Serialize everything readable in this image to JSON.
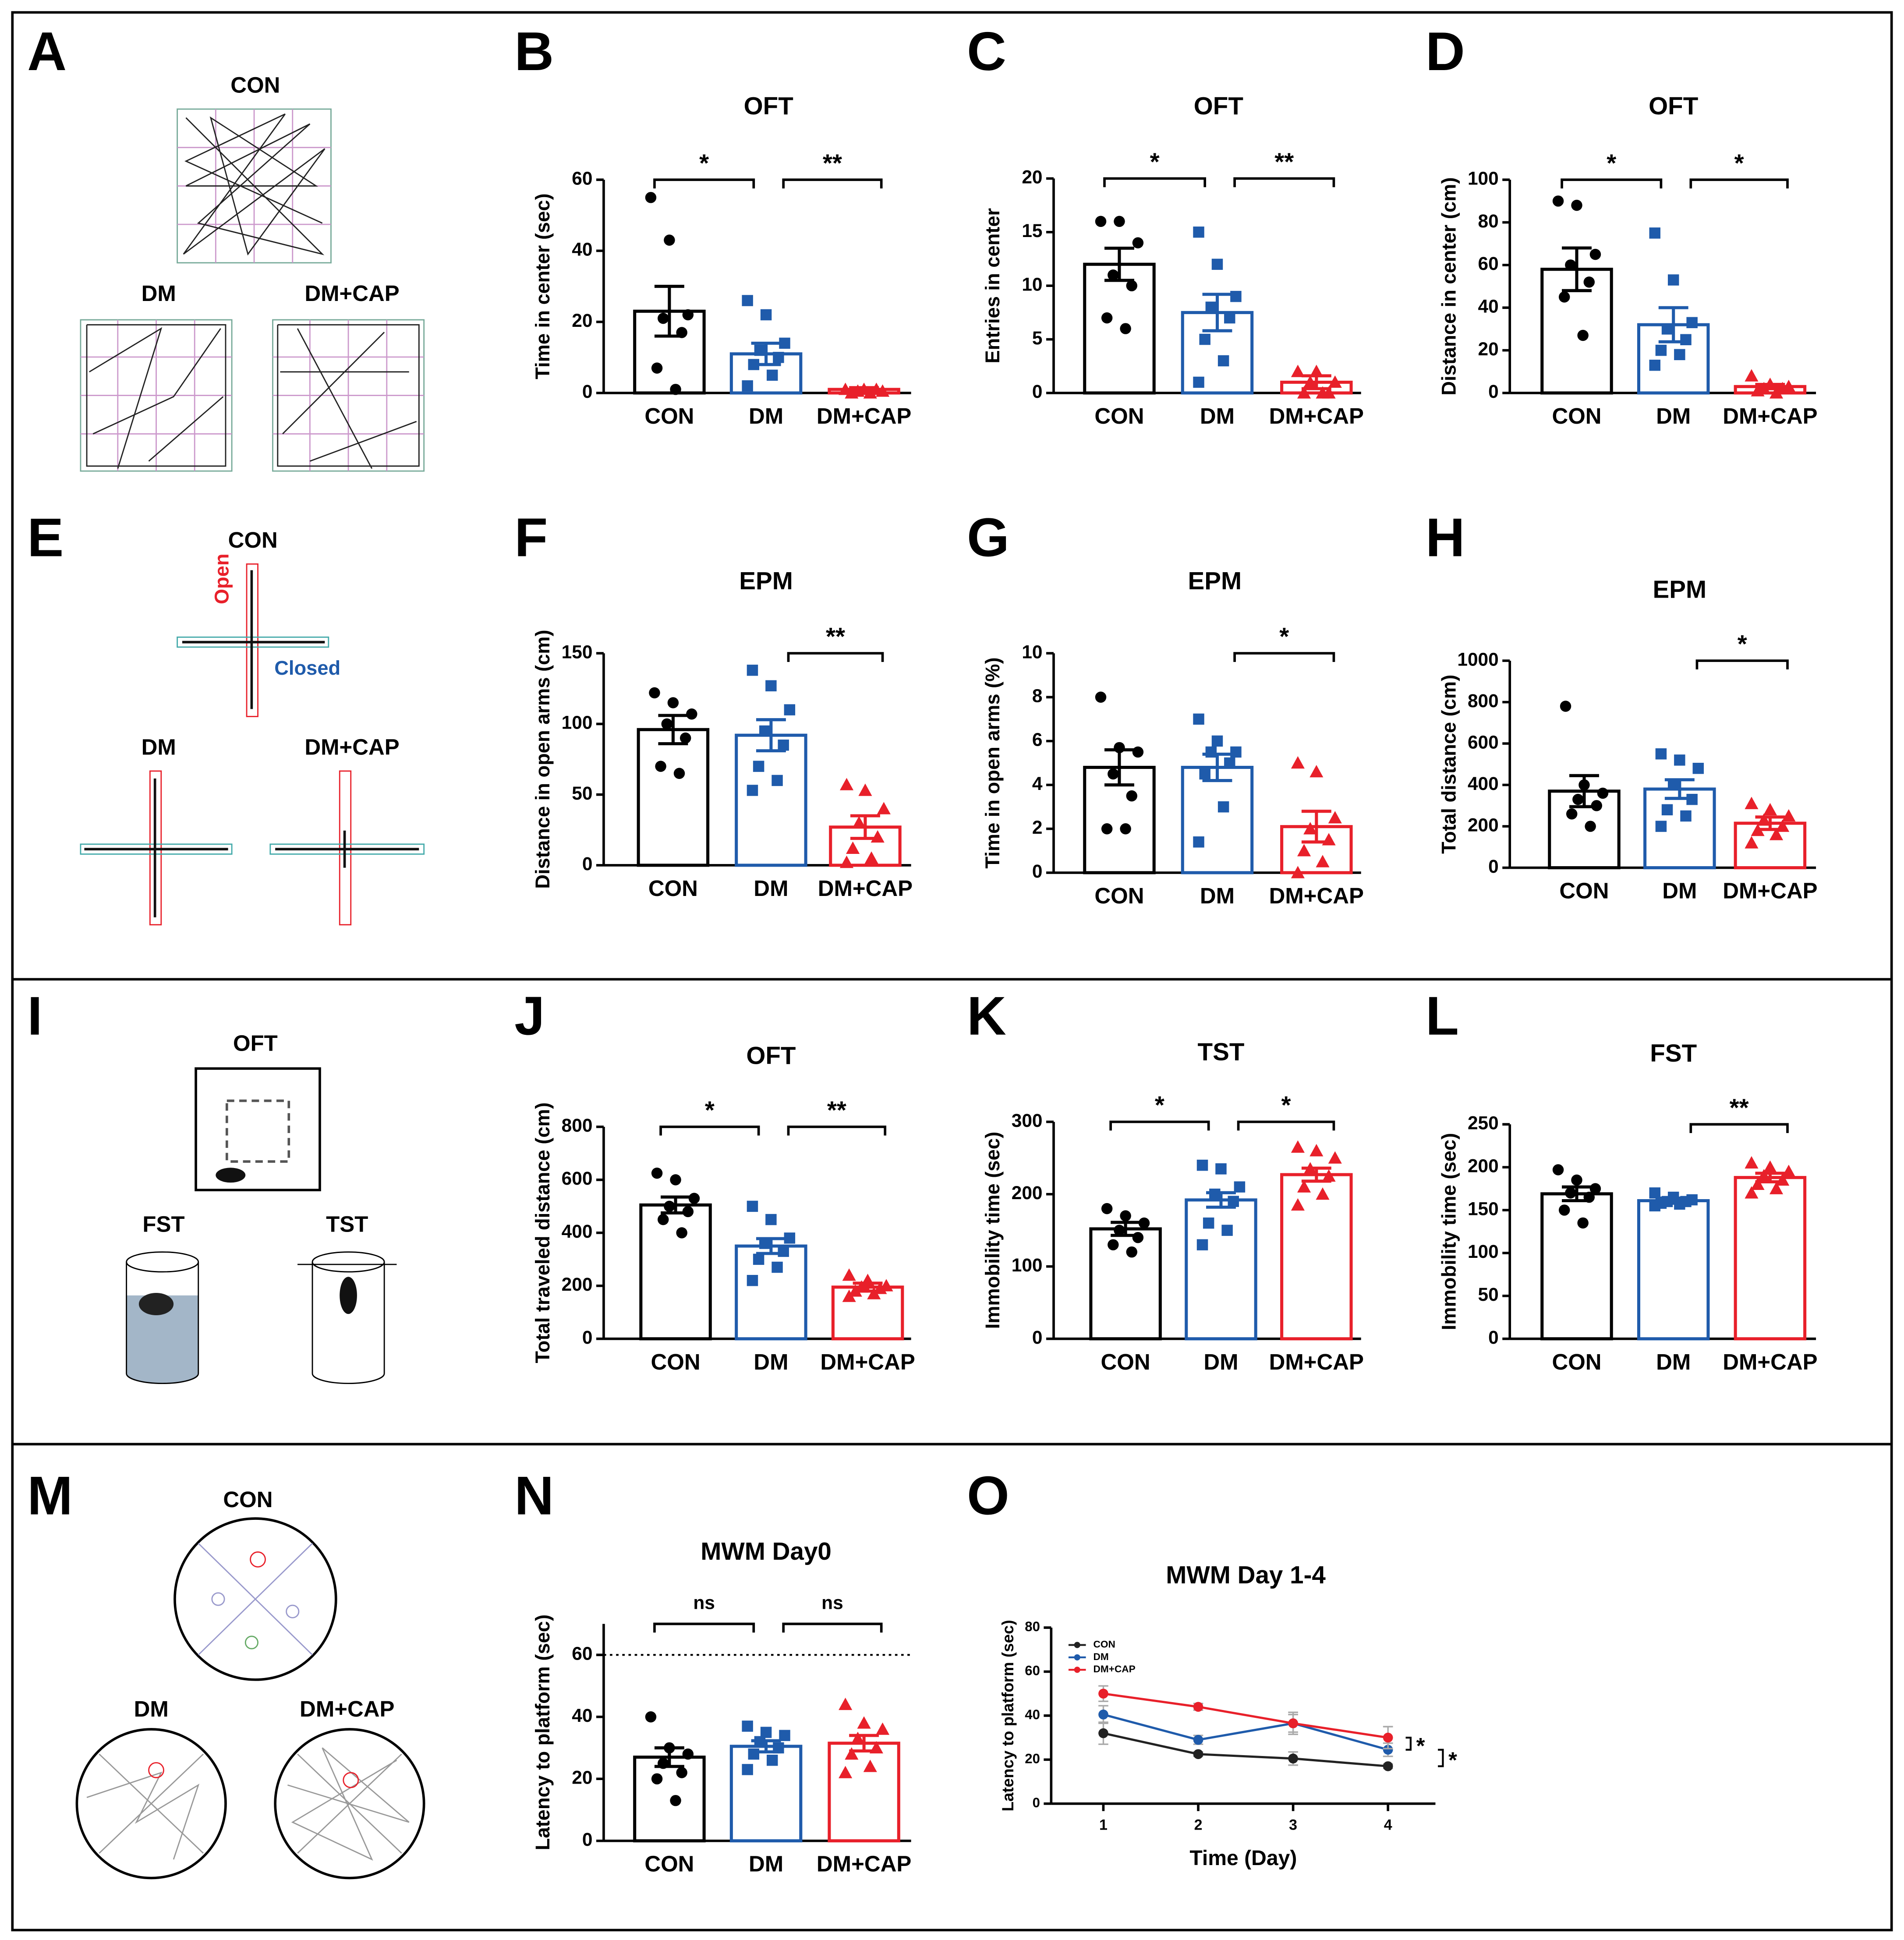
{
  "chart_data": [
    {
      "type": "bar",
      "panel": "B",
      "title": "OFT",
      "ylabel": "Time in center (sec)",
      "categories": [
        "CON",
        "DM",
        "DM+CAP"
      ],
      "colors": [
        "#000000",
        "#1f5bab",
        "#e8202a"
      ],
      "markers": [
        "circle",
        "square",
        "triangle"
      ],
      "values": [
        23,
        11,
        1
      ],
      "errors": [
        7,
        3,
        0.5
      ],
      "points": [
        [
          55,
          43,
          22,
          21,
          17,
          7,
          1
        ],
        [
          26,
          22,
          14,
          12,
          10,
          8,
          5,
          2
        ],
        [
          1,
          1,
          0.5,
          0.5,
          1,
          0,
          0
        ]
      ],
      "ylim": [
        0,
        60
      ],
      "yticks": [
        0,
        20,
        40,
        60
      ],
      "annotations": [
        {
          "label": "*",
          "between": [
            "CON",
            "DM"
          ]
        },
        {
          "label": "**",
          "between": [
            "DM",
            "DM+CAP"
          ]
        }
      ]
    },
    {
      "type": "bar",
      "panel": "C",
      "title": "OFT",
      "ylabel": "Entries in center",
      "categories": [
        "CON",
        "DM",
        "DM+CAP"
      ],
      "colors": [
        "#000000",
        "#1f5bab",
        "#e8202a"
      ],
      "markers": [
        "circle",
        "square",
        "triangle"
      ],
      "values": [
        12,
        7.5,
        1
      ],
      "errors": [
        1.5,
        1.7,
        0.6
      ],
      "points": [
        [
          16,
          16,
          14,
          11,
          10,
          7,
          6
        ],
        [
          15,
          12,
          9,
          8,
          7,
          5,
          3,
          1
        ],
        [
          2,
          2,
          1,
          1,
          0,
          0,
          0
        ]
      ],
      "ylim": [
        0,
        20
      ],
      "yticks": [
        0,
        5,
        10,
        15,
        20
      ],
      "annotations": [
        {
          "label": "*",
          "between": [
            "CON",
            "DM"
          ]
        },
        {
          "label": "**",
          "between": [
            "DM",
            "DM+CAP"
          ]
        }
      ]
    },
    {
      "type": "bar",
      "panel": "D",
      "title": "OFT",
      "ylabel": "Distance in center (cm)",
      "categories": [
        "CON",
        "DM",
        "DM+CAP"
      ],
      "colors": [
        "#000000",
        "#1f5bab",
        "#e8202a"
      ],
      "markers": [
        "circle",
        "square",
        "triangle"
      ],
      "values": [
        58,
        32,
        3
      ],
      "errors": [
        10,
        8,
        1
      ],
      "points": [
        [
          90,
          88,
          65,
          60,
          52,
          45,
          27
        ],
        [
          75,
          53,
          33,
          30,
          25,
          20,
          18,
          13
        ],
        [
          8,
          4,
          3,
          2,
          2,
          1,
          0
        ]
      ],
      "ylim": [
        0,
        100
      ],
      "yticks": [
        0,
        20,
        40,
        60,
        80,
        100
      ],
      "annotations": [
        {
          "label": "*",
          "between": [
            "CON",
            "DM"
          ]
        },
        {
          "label": "*",
          "between": [
            "DM",
            "DM+CAP"
          ]
        }
      ]
    },
    {
      "type": "bar",
      "panel": "F",
      "title": "EPM",
      "ylabel": "Distance in open arms (cm)",
      "categories": [
        "CON",
        "DM",
        "DM+CAP"
      ],
      "colors": [
        "#000000",
        "#1f5bab",
        "#e8202a"
      ],
      "markers": [
        "circle",
        "square",
        "triangle"
      ],
      "values": [
        96,
        92,
        27
      ],
      "errors": [
        10,
        11,
        8
      ],
      "points": [
        [
          122,
          115,
          107,
          100,
          90,
          70,
          65
        ],
        [
          138,
          127,
          110,
          95,
          85,
          70,
          60,
          53
        ],
        [
          57,
          53,
          40,
          30,
          20,
          12,
          5,
          2
        ]
      ],
      "ylim": [
        0,
        150
      ],
      "yticks": [
        0,
        50,
        100,
        150
      ],
      "annotations": [
        {
          "label": "**",
          "between": [
            "DM",
            "DM+CAP"
          ]
        }
      ]
    },
    {
      "type": "bar",
      "panel": "G",
      "title": "EPM",
      "ylabel": "Time in open arms (%)",
      "categories": [
        "CON",
        "DM",
        "DM+CAP"
      ],
      "colors": [
        "#000000",
        "#1f5bab",
        "#e8202a"
      ],
      "markers": [
        "circle",
        "square",
        "triangle"
      ],
      "values": [
        4.8,
        4.8,
        2.1
      ],
      "errors": [
        0.8,
        0.6,
        0.7
      ],
      "points": [
        [
          8,
          5.7,
          5.5,
          4.5,
          3.5,
          2,
          2
        ],
        [
          7,
          6,
          5.5,
          5.5,
          5,
          4.5,
          3,
          1.4
        ],
        [
          5,
          4.6,
          2.5,
          2,
          1.5,
          1,
          0.5,
          0
        ]
      ],
      "ylim": [
        0,
        10
      ],
      "yticks": [
        0,
        2,
        4,
        6,
        8,
        10
      ],
      "annotations": [
        {
          "label": "*",
          "between": [
            "DM",
            "DM+CAP"
          ]
        }
      ]
    },
    {
      "type": "bar",
      "panel": "H",
      "title": "EPM",
      "ylabel": "Total distance (cm)",
      "categories": [
        "CON",
        "DM",
        "DM+CAP"
      ],
      "colors": [
        "#000000",
        "#1f5bab",
        "#e8202a"
      ],
      "markers": [
        "circle",
        "square",
        "triangle"
      ],
      "values": [
        370,
        380,
        215
      ],
      "errors": [
        75,
        45,
        30
      ],
      "points": [
        [
          780,
          400,
          360,
          330,
          300,
          260,
          200
        ],
        [
          550,
          520,
          480,
          400,
          330,
          280,
          250,
          200
        ],
        [
          310,
          280,
          250,
          230,
          200,
          180,
          160,
          120
        ]
      ],
      "ylim": [
        0,
        1000
      ],
      "yticks": [
        0,
        200,
        400,
        600,
        800,
        1000
      ],
      "annotations": [
        {
          "label": "*",
          "between": [
            "DM",
            "DM+CAP"
          ]
        }
      ]
    },
    {
      "type": "bar",
      "panel": "J",
      "title": "OFT",
      "ylabel": "Total traveled distance (cm)",
      "categories": [
        "CON",
        "DM",
        "DM+CAP"
      ],
      "colors": [
        "#000000",
        "#1f5bab",
        "#e8202a"
      ],
      "markers": [
        "circle",
        "square",
        "triangle"
      ],
      "values": [
        505,
        350,
        195
      ],
      "errors": [
        30,
        28,
        15
      ],
      "points": [
        [
          625,
          600,
          530,
          500,
          480,
          450,
          400
        ],
        [
          500,
          450,
          380,
          360,
          330,
          300,
          270,
          220
        ],
        [
          240,
          220,
          200,
          195,
          190,
          180,
          170,
          160
        ]
      ],
      "ylim": [
        0,
        800
      ],
      "yticks": [
        0,
        200,
        400,
        600,
        800
      ],
      "annotations": [
        {
          "label": "*",
          "between": [
            "CON",
            "DM"
          ]
        },
        {
          "label": "**",
          "between": [
            "DM",
            "DM+CAP"
          ]
        }
      ]
    },
    {
      "type": "bar",
      "panel": "K",
      "title": "TST",
      "ylabel": "Immobility time (sec)",
      "categories": [
        "CON",
        "DM",
        "DM+CAP"
      ],
      "colors": [
        "#000000",
        "#1f5bab",
        "#e8202a"
      ],
      "markers": [
        "circle",
        "square",
        "triangle"
      ],
      "values": [
        152,
        192,
        227
      ],
      "errors": [
        9,
        10,
        9
      ],
      "points": [
        [
          180,
          170,
          160,
          150,
          140,
          130,
          120
        ],
        [
          240,
          235,
          210,
          200,
          190,
          160,
          150,
          130
        ],
        [
          265,
          260,
          250,
          235,
          225,
          210,
          200,
          185
        ]
      ],
      "ylim": [
        0,
        300
      ],
      "yticks": [
        0,
        100,
        200,
        300
      ],
      "annotations": [
        {
          "label": "*",
          "between": [
            "CON",
            "DM"
          ]
        },
        {
          "label": "*",
          "between": [
            "DM",
            "DM+CAP"
          ]
        }
      ]
    },
    {
      "type": "bar",
      "panel": "L",
      "title": "FST",
      "ylabel": "Immobility time (sec)",
      "categories": [
        "CON",
        "DM",
        "DM+CAP"
      ],
      "colors": [
        "#000000",
        "#1f5bab",
        "#e8202a"
      ],
      "markers": [
        "circle",
        "square",
        "triangle"
      ],
      "values": [
        169,
        161,
        188
      ],
      "errors": [
        8,
        3,
        5
      ],
      "points": [
        [
          197,
          185,
          175,
          170,
          165,
          150,
          135
        ],
        [
          170,
          165,
          162,
          160,
          160,
          158,
          157,
          155
        ],
        [
          205,
          200,
          195,
          190,
          185,
          180,
          175,
          170
        ]
      ],
      "ylim": [
        0,
        250
      ],
      "yticks": [
        0,
        50,
        100,
        150,
        200,
        250
      ],
      "annotations": [
        {
          "label": "**",
          "between": [
            "DM",
            "DM+CAP"
          ]
        }
      ]
    },
    {
      "type": "bar",
      "panel": "N",
      "title": "MWM Day0",
      "ylabel": "Latency to platform (sec)",
      "categories": [
        "CON",
        "DM",
        "DM+CAP"
      ],
      "colors": [
        "#000000",
        "#1f5bab",
        "#e8202a"
      ],
      "markers": [
        "circle",
        "square",
        "triangle"
      ],
      "values": [
        27,
        30.5,
        31.5
      ],
      "errors": [
        3,
        1.8,
        2.5
      ],
      "points": [
        [
          40,
          30,
          28,
          25,
          22,
          20,
          13
        ],
        [
          37,
          35,
          34,
          32,
          30,
          28,
          26,
          23
        ],
        [
          44,
          38,
          36,
          33,
          30,
          28,
          24,
          22
        ]
      ],
      "ylim": [
        0,
        70
      ],
      "yticks": [
        0,
        20,
        40,
        60
      ],
      "hline": 60,
      "annotations": [
        {
          "label": "ns",
          "between": [
            "CON",
            "DM"
          ]
        },
        {
          "label": "ns",
          "between": [
            "DM",
            "DM+CAP"
          ]
        }
      ]
    },
    {
      "type": "line",
      "panel": "O",
      "title": "MWM Day 1-4",
      "xlabel": "Time (Day)",
      "ylabel": "Latency to platform (sec)",
      "x": [
        1,
        2,
        3,
        4
      ],
      "xlim": [
        0.45,
        4.5
      ],
      "xticks": [
        1,
        2,
        3,
        4
      ],
      "ylim": [
        0,
        80
      ],
      "yticks": [
        0,
        20,
        40,
        60,
        80
      ],
      "legend": "upper left",
      "series": [
        {
          "name": "CON",
          "color": "#222222",
          "values": [
            32,
            22.5,
            20.5,
            17
          ],
          "errors": [
            5,
            1,
            3,
            1
          ]
        },
        {
          "name": "DM",
          "color": "#1f5bab",
          "values": [
            40.5,
            29,
            36.5,
            24.5
          ],
          "errors": [
            4,
            2,
            5,
            3
          ]
        },
        {
          "name": "DM+CAP",
          "color": "#e8202a",
          "values": [
            50,
            44,
            36.5,
            30
          ],
          "errors": [
            3.5,
            1.5,
            4,
            5
          ]
        }
      ],
      "annotations": [
        {
          "label": "*",
          "between": [
            "DM+CAP",
            "DM"
          ]
        },
        {
          "label": "*",
          "between": [
            "DM",
            "CON"
          ]
        }
      ]
    }
  ],
  "illustrations": [
    {
      "panel": "A",
      "labels": [
        "CON",
        "DM",
        "DM+CAP"
      ]
    },
    {
      "panel": "E",
      "labels": [
        "CON",
        "DM",
        "DM+CAP"
      ],
      "open": "Open",
      "closed": "Closed"
    },
    {
      "panel": "I",
      "labels": [
        "OFT",
        "FST",
        "TST"
      ]
    },
    {
      "panel": "M",
      "labels": [
        "CON",
        "DM",
        "DM+CAP"
      ]
    }
  ]
}
